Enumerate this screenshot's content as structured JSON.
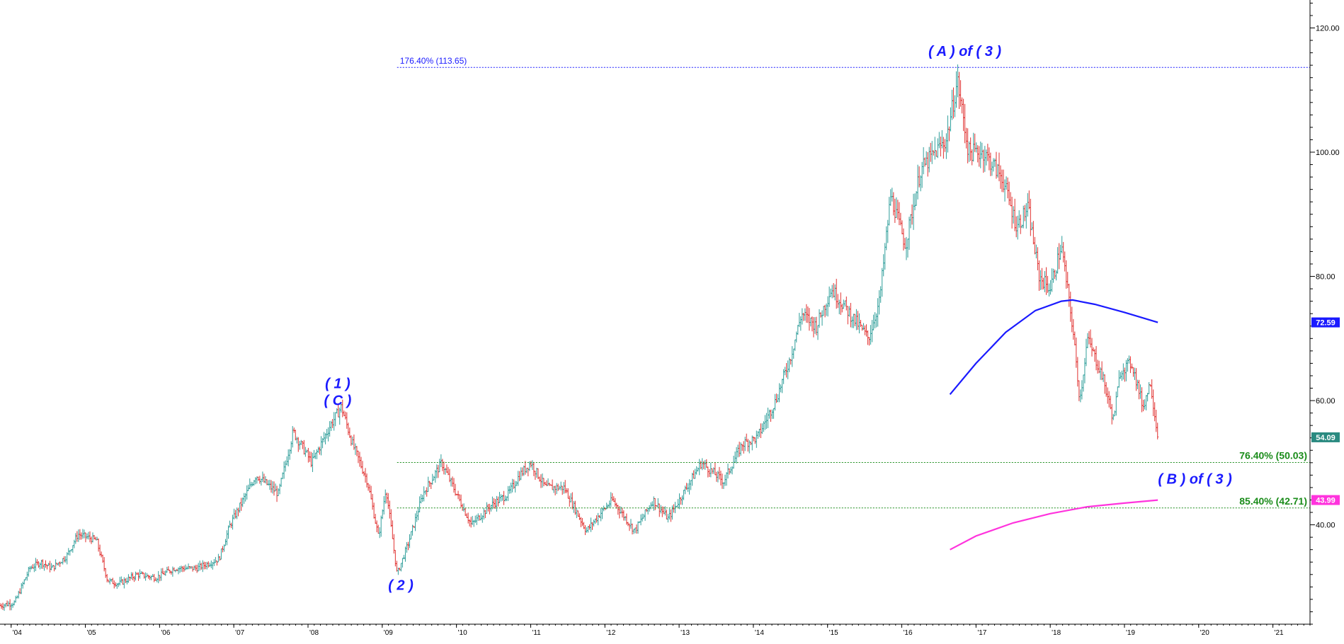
{
  "colors": {
    "background": "#ffffff",
    "axis": "#000000",
    "up_bar": "#2f9e9a",
    "down_bar": "#e0302f",
    "fib_upper": "#1a1aff",
    "fib_lower": "#1a8c1a",
    "wave_label": "#1a1aff",
    "avg_high": "#1a1aff",
    "avg_low": "#ff33dd",
    "price_tag": "#2a8a80"
  },
  "chart_data": {
    "type": "line",
    "subtype": "price bar chart",
    "title": "",
    "xlabel": "",
    "ylabel": "",
    "grid": false,
    "x_range": [
      2003.85,
      2021.5
    ],
    "y_range": [
      24.0,
      124.5
    ],
    "y_ticks": [
      {
        "value": 40,
        "label": "40.00"
      },
      {
        "value": 60,
        "label": "60.00"
      },
      {
        "value": 80,
        "label": "80.00"
      },
      {
        "value": 100,
        "label": "100.00"
      },
      {
        "value": 120,
        "label": "120.00"
      }
    ],
    "x_ticks": [
      {
        "value": 2004,
        "label": "'04"
      },
      {
        "value": 2005,
        "label": "'05"
      },
      {
        "value": 2006,
        "label": "'06"
      },
      {
        "value": 2007,
        "label": "'07"
      },
      {
        "value": 2008,
        "label": "'08"
      },
      {
        "value": 2009,
        "label": "'09"
      },
      {
        "value": 2010,
        "label": "'10"
      },
      {
        "value": 2011,
        "label": "'11"
      },
      {
        "value": 2012,
        "label": "'12"
      },
      {
        "value": 2013,
        "label": "'13"
      },
      {
        "value": 2014,
        "label": "'14"
      },
      {
        "value": 2015,
        "label": "'15"
      },
      {
        "value": 2016,
        "label": "'16"
      },
      {
        "value": 2017,
        "label": "'17"
      },
      {
        "value": 2018,
        "label": "'18"
      },
      {
        "value": 2019,
        "label": "'19"
      },
      {
        "value": 2020,
        "label": "'20"
      },
      {
        "value": 2021,
        "label": "'21"
      }
    ],
    "price_path": [
      [
        2003.85,
        27
      ],
      [
        2004.05,
        27.5
      ],
      [
        2004.25,
        33
      ],
      [
        2004.4,
        34
      ],
      [
        2004.55,
        33
      ],
      [
        2004.75,
        35
      ],
      [
        2004.9,
        38.5
      ],
      [
        2005.15,
        37.5
      ],
      [
        2005.3,
        31
      ],
      [
        2005.45,
        30.5
      ],
      [
        2005.7,
        32
      ],
      [
        2005.95,
        31.5
      ],
      [
        2006.2,
        33
      ],
      [
        2006.5,
        33
      ],
      [
        2006.8,
        34.5
      ],
      [
        2006.95,
        40
      ],
      [
        2007.3,
        48
      ],
      [
        2007.6,
        45
      ],
      [
        2007.8,
        55
      ],
      [
        2008.05,
        50
      ],
      [
        2008.3,
        56
      ],
      [
        2008.45,
        59
      ],
      [
        2008.6,
        53
      ],
      [
        2008.8,
        47
      ],
      [
        2008.95,
        38
      ],
      [
        2009.05,
        46
      ],
      [
        2009.2,
        32
      ],
      [
        2009.35,
        37
      ],
      [
        2009.55,
        45
      ],
      [
        2009.8,
        50
      ],
      [
        2010.0,
        45
      ],
      [
        2010.2,
        40
      ],
      [
        2010.45,
        43
      ],
      [
        2010.7,
        45
      ],
      [
        2010.85,
        48
      ],
      [
        2011.0,
        50
      ],
      [
        2011.2,
        46
      ],
      [
        2011.45,
        46
      ],
      [
        2011.75,
        39
      ],
      [
        2011.95,
        42
      ],
      [
        2012.1,
        44
      ],
      [
        2012.4,
        39
      ],
      [
        2012.65,
        44
      ],
      [
        2012.85,
        41
      ],
      [
        2013.05,
        45
      ],
      [
        2013.3,
        50
      ],
      [
        2013.6,
        47
      ],
      [
        2013.85,
        53
      ],
      [
        2014.05,
        54
      ],
      [
        2014.3,
        60
      ],
      [
        2014.5,
        67
      ],
      [
        2014.65,
        74
      ],
      [
        2014.85,
        72
      ],
      [
        2015.05,
        78
      ],
      [
        2015.3,
        74
      ],
      [
        2015.55,
        70
      ],
      [
        2015.7,
        76
      ],
      [
        2015.85,
        93
      ],
      [
        2016.05,
        85
      ],
      [
        2016.25,
        97
      ],
      [
        2016.45,
        100
      ],
      [
        2016.6,
        102
      ],
      [
        2016.75,
        111.5
      ],
      [
        2016.9,
        100
      ],
      [
        2017.1,
        100
      ],
      [
        2017.35,
        96
      ],
      [
        2017.55,
        88
      ],
      [
        2017.7,
        91
      ],
      [
        2017.85,
        80
      ],
      [
        2018.0,
        78
      ],
      [
        2018.15,
        85
      ],
      [
        2018.3,
        72
      ],
      [
        2018.4,
        60
      ],
      [
        2018.5,
        70
      ],
      [
        2018.7,
        64
      ],
      [
        2018.85,
        57
      ],
      [
        2018.95,
        65
      ],
      [
        2019.1,
        66
      ],
      [
        2019.25,
        59
      ],
      [
        2019.35,
        63
      ],
      [
        2019.45,
        54.09
      ]
    ],
    "last_price": {
      "value": 54.09,
      "label": "54.09"
    },
    "series": [
      {
        "name": "",
        "color": "#1a1aff",
        "points": [
          [
            2016.65,
            61
          ],
          [
            2017.0,
            66
          ],
          [
            2017.4,
            71
          ],
          [
            2017.8,
            74.5
          ],
          [
            2018.15,
            76
          ],
          [
            2018.3,
            76.2
          ],
          [
            2018.6,
            75.5
          ],
          [
            2019.0,
            74.2
          ],
          [
            2019.45,
            72.59
          ]
        ],
        "end_label": "72.59"
      },
      {
        "name": "",
        "color": "#ff33dd",
        "points": [
          [
            2016.65,
            36
          ],
          [
            2017.0,
            38.2
          ],
          [
            2017.5,
            40.3
          ],
          [
            2018.0,
            41.8
          ],
          [
            2018.5,
            42.9
          ],
          [
            2019.0,
            43.5
          ],
          [
            2019.45,
            43.99
          ]
        ],
        "end_label": "43.99"
      }
    ],
    "horizontal_levels": [
      {
        "label": "176.40% (113.65)",
        "value": 113.65,
        "x_start": 2009.2,
        "color": "#1a1aff",
        "label_position": "left"
      },
      {
        "label": "76.40% (50.03)",
        "value": 50.03,
        "x_start": 2009.2,
        "color": "#1a8c1a",
        "label_position": "right"
      },
      {
        "label": "85.40% (42.71)",
        "value": 42.71,
        "x_start": 2009.2,
        "color": "#1a8c1a",
        "label_position": "right"
      }
    ],
    "annotations": [
      {
        "lines": [
          "( 1 )",
          "( C )"
        ],
        "x": 2008.4,
        "y": 62,
        "color": "#1a1aff"
      },
      {
        "lines": [
          "( 2 )"
        ],
        "x": 2009.25,
        "y": 29.5,
        "color": "#1a1aff"
      },
      {
        "lines": [
          "( A ) of ( 3 )"
        ],
        "x": 2016.85,
        "y": 115.5,
        "color": "#1a1aff"
      },
      {
        "lines": [
          "( B ) of ( 3 )"
        ],
        "x": 2019.95,
        "y": 46.6,
        "color": "#1a1aff"
      }
    ]
  }
}
